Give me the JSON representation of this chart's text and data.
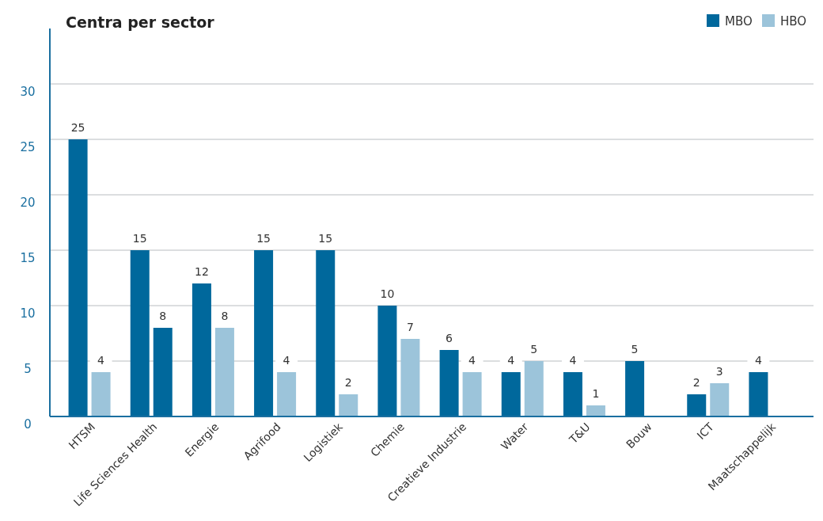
{
  "chart_data": {
    "type": "bar",
    "title": "Centra per sector",
    "categories": [
      "HTSM",
      "Life Sciences Health",
      "Energie",
      "Agrifood",
      "Logistiek",
      "Chemie",
      "Creatieve Industrie",
      "Water",
      "T&U",
      "Bouw",
      "ICT",
      "Maatschappelijk"
    ],
    "series": [
      {
        "name": "MBO",
        "color": "#00689c",
        "values": [
          25,
          15,
          12,
          15,
          15,
          10,
          6,
          4,
          4,
          5,
          2,
          4
        ]
      },
      {
        "name": "HBO",
        "color": "#9cc4da",
        "colors": [
          "#9cc4da",
          "#00689c",
          "#9cc4da",
          "#9cc4da",
          "#9cc4da",
          "#9cc4da",
          "#9cc4da",
          "#9cc4da",
          "#9cc4da",
          null,
          "#9cc4da",
          null
        ],
        "values": [
          4,
          8,
          8,
          4,
          2,
          7,
          4,
          5,
          1,
          null,
          3,
          null
        ]
      }
    ],
    "ylim": [
      0,
      35
    ],
    "yticks": [
      0,
      5,
      10,
      15,
      20,
      25,
      30
    ],
    "grid": "y",
    "legend": "top right",
    "data_labels": true
  }
}
